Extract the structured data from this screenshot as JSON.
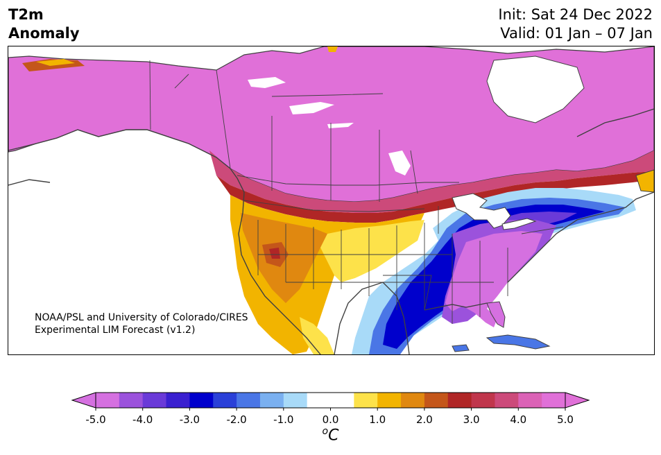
{
  "header": {
    "variable_line1": "T2m",
    "variable_line2": "Anomaly",
    "init": "Init: Sat 24 Dec 2022",
    "valid": "Valid: 01 Jan – 07 Jan"
  },
  "credit": {
    "line1": "NOAA/PSL and University of Colorado/CIRES",
    "line2": "Experimental LIM Forecast (v1.2)"
  },
  "colorbar": {
    "tick_labels": [
      "-5.0",
      "-4.0",
      "-3.0",
      "-2.0",
      "-1.0",
      "0.0",
      "1.0",
      "2.0",
      "3.0",
      "4.0",
      "5.0"
    ],
    "units_sup": "o",
    "units_main": "C",
    "colors": [
      "#d570e0",
      "#9b52dc",
      "#6a3ad8",
      "#3a20d0",
      "#0000cc",
      "#2a40d8",
      "#4a76e6",
      "#7ab0f0",
      "#a8daf8",
      "#ffffff",
      "#ffffff",
      "#fde24a",
      "#f2b400",
      "#e08810",
      "#c4561a",
      "#b02626",
      "#c0364c",
      "#cc4a7a",
      "#db62b6",
      "#e070d8"
    ]
  },
  "map": {
    "region": "North America",
    "colors": {
      "magenta": "#e070d8",
      "pink": "#cc4a7a",
      "red": "#b02626",
      "orange": "#e08810",
      "gold": "#f2b400",
      "yellow": "#fde24a",
      "lightblue": "#a8daf8",
      "blue": "#4a76e6",
      "darkblue": "#0000cc",
      "violet": "#6a3ad8",
      "purple": "#9b52dc",
      "lavender": "#d570e0",
      "border": "#404040"
    }
  }
}
